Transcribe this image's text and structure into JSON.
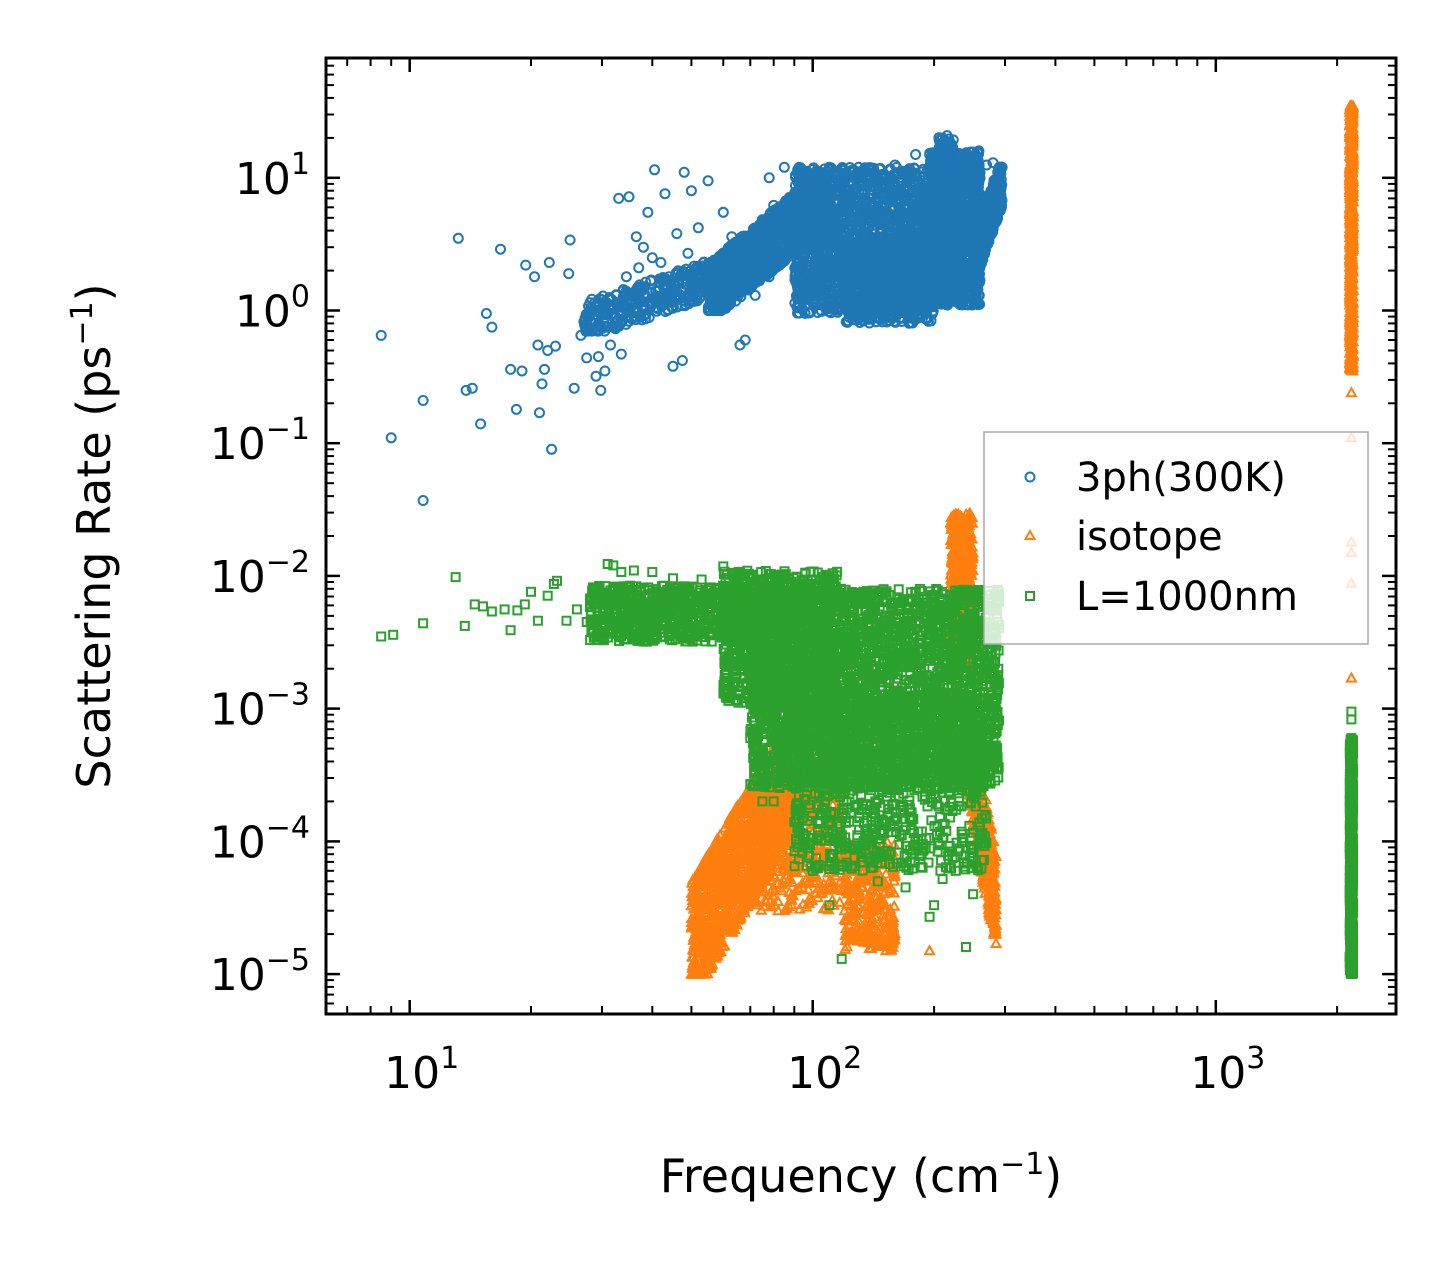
{
  "chart_data": {
    "type": "scatter",
    "xscale": "log",
    "yscale": "log",
    "xlim": [
      6.2,
      2800
    ],
    "ylim": [
      5e-06,
      80
    ],
    "xlabel": {
      "text": "Frequency (cm",
      "sup": "−1",
      "tail": ")"
    },
    "ylabel": {
      "text": "Scattering Rate (ps",
      "sup": "−1",
      "tail": ")"
    },
    "xticks": [
      {
        "value": 10,
        "base": "10",
        "exp": "1"
      },
      {
        "value": 100,
        "base": "10",
        "exp": "2"
      },
      {
        "value": 1000,
        "base": "10",
        "exp": "3"
      }
    ],
    "yticks": [
      {
        "value": 10,
        "base": "10",
        "exp": "1"
      },
      {
        "value": 1,
        "base": "10",
        "exp": "0"
      },
      {
        "value": 0.1,
        "base": "10",
        "exp": "−1"
      },
      {
        "value": 0.01,
        "base": "10",
        "exp": "−2"
      },
      {
        "value": 0.001,
        "base": "10",
        "exp": "−3"
      },
      {
        "value": 0.0001,
        "base": "10",
        "exp": "−4"
      },
      {
        "value": 1e-05,
        "base": "10",
        "exp": "−5"
      }
    ],
    "legend": {
      "position": "center-right"
    },
    "series": [
      {
        "name": "3ph(300K)",
        "marker": "circle",
        "color": "#1f77b4",
        "points": [
          [
            8.5,
            0.65
          ],
          [
            9.0,
            0.11
          ],
          [
            10.8,
            0.21
          ],
          [
            10.8,
            0.037
          ],
          [
            13.2,
            3.5
          ],
          [
            13.8,
            0.25
          ],
          [
            14.3,
            0.26
          ],
          [
            15.0,
            0.14
          ],
          [
            15.5,
            0.95
          ],
          [
            16.0,
            0.75
          ],
          [
            16.8,
            2.9
          ],
          [
            17.8,
            0.36
          ],
          [
            18.4,
            0.18
          ],
          [
            19.0,
            0.35
          ],
          [
            19.4,
            2.2
          ],
          [
            20.4,
            1.8
          ],
          [
            20.8,
            0.55
          ],
          [
            21.0,
            0.17
          ],
          [
            21.3,
            0.28
          ],
          [
            21.6,
            0.36
          ],
          [
            22.0,
            0.5
          ],
          [
            22.2,
            2.3
          ],
          [
            22.5,
            0.09
          ],
          [
            23.0,
            0.54
          ],
          [
            24.8,
            1.9
          ],
          [
            25.0,
            3.4
          ],
          [
            25.6,
            0.26
          ],
          [
            26.6,
            0.65
          ],
          [
            27.5,
            0.44
          ],
          [
            28.3,
            0.7
          ],
          [
            29.0,
            0.32
          ],
          [
            29.4,
            0.45
          ],
          [
            29.8,
            0.25
          ],
          [
            30.0,
            1.05
          ],
          [
            30.5,
            0.35
          ],
          [
            31.5,
            0.55
          ],
          [
            32.3,
            0.74
          ],
          [
            33.0,
            7.0
          ],
          [
            33.5,
            0.47
          ],
          [
            34.5,
            1.8
          ],
          [
            35.0,
            7.2
          ],
          [
            35.8,
            1.2
          ],
          [
            36.5,
            3.6
          ],
          [
            37.0,
            2.1
          ],
          [
            38.0,
            3.0
          ],
          [
            39.0,
            5.5
          ],
          [
            40.0,
            2.5
          ],
          [
            40.5,
            11.5
          ],
          [
            41.3,
            1.4
          ],
          [
            42.0,
            2.3
          ],
          [
            43.0,
            7.6
          ],
          [
            44.0,
            1.8
          ],
          [
            45.0,
            0.38
          ],
          [
            46.0,
            3.8
          ],
          [
            47.5,
            0.42
          ],
          [
            48.0,
            11.0
          ],
          [
            49.0,
            2.7
          ],
          [
            50.0,
            8.0
          ],
          [
            52.0,
            4.2
          ],
          [
            55.0,
            9.5
          ],
          [
            58.0,
            1.6
          ],
          [
            60.0,
            5.5
          ],
          [
            63.0,
            3.6
          ],
          [
            66.0,
            0.55
          ],
          [
            68.0,
            0.6
          ],
          [
            70.0,
            2.8
          ],
          [
            72.0,
            1.3
          ],
          [
            75.0,
            4.6
          ],
          [
            78.0,
            10.0
          ],
          [
            80.0,
            6.2
          ],
          [
            85.0,
            12.0
          ],
          [
            90.0,
            7.5
          ],
          [
            95.0,
            2.5
          ],
          [
            100.0,
            9.4
          ],
          [
            105.0,
            4.2
          ],
          [
            110.0,
            12.0
          ],
          [
            115.0,
            1.4
          ],
          [
            120.0,
            5.0
          ],
          [
            125.0,
            6.2
          ],
          [
            130.0,
            12.0
          ],
          [
            135.0,
            3.0
          ],
          [
            140.0,
            7.0
          ],
          [
            145.0,
            1.2
          ],
          [
            150.0,
            9.8
          ],
          [
            160.0,
            12.5
          ],
          [
            170.0,
            3.3
          ],
          [
            180.0,
            15.0
          ],
          [
            190.0,
            5.5
          ],
          [
            200.0,
            13.0
          ],
          [
            210.0,
            20.0
          ],
          [
            215.0,
            8.0
          ],
          [
            220.0,
            2.2
          ],
          [
            230.0,
            3.0
          ],
          [
            240.0,
            5.0
          ],
          [
            250.0,
            1.6
          ],
          [
            260.0,
            10.0
          ],
          [
            270.0,
            12.5
          ],
          [
            280.0,
            13.0
          ],
          [
            290.0,
            9.5
          ]
        ],
        "cloud": [
          {
            "x": [
              27,
              80
            ],
            "y": [
              0.7,
              3.0
            ],
            "n": 500,
            "trend": 1
          },
          {
            "x": [
              55,
              110
            ],
            "y": [
              1.0,
              10.0
            ],
            "n": 1300,
            "trend": 1
          },
          {
            "x": [
              90,
              200
            ],
            "y": [
              0.95,
              12.0
            ],
            "n": 1700,
            "trend": 0
          },
          {
            "x": [
              120,
              200
            ],
            "y": [
              0.8,
              3.5
            ],
            "n": 600,
            "trend": 0
          },
          {
            "x": [
              195,
              260
            ],
            "y": [
              1.1,
              16.0
            ],
            "n": 1200,
            "trend": 0
          },
          {
            "x": [
              250,
              295
            ],
            "y": [
              1.8,
              12.0
            ],
            "n": 400,
            "trend": 1
          },
          {
            "x": [
              205,
              225
            ],
            "y": [
              5.0,
              21.0
            ],
            "n": 150,
            "trend": 0
          }
        ]
      },
      {
        "name": "isotope",
        "marker": "triangle",
        "color": "#ff7f0e",
        "points": [
          [
            2170,
            0.24
          ],
          [
            2170,
            0.11
          ],
          [
            2170,
            0.018
          ],
          [
            2170,
            0.015
          ],
          [
            2170,
            0.0088
          ],
          [
            2170,
            0.0017
          ],
          [
            285,
            1.7e-05
          ],
          [
            280,
            2.6e-05
          ],
          [
            275,
            3.2e-05
          ],
          [
            195,
            1.5e-05
          ],
          [
            152,
            1.5e-05
          ],
          [
            145,
            1.8e-05
          ],
          [
            130,
            2.5e-05
          ],
          [
            120,
            3e-05
          ],
          [
            110,
            5e-05
          ]
        ],
        "cloud": [
          {
            "x": [
              50,
              100
            ],
            "y": [
              1e-05,
              0.001
            ],
            "n": 1600,
            "trend": 1,
            "xcurve": 1
          },
          {
            "x": [
              70,
              120
            ],
            "y": [
              3e-05,
              0.0004
            ],
            "n": 400,
            "trend": 0
          },
          {
            "x": [
              120,
              160
            ],
            "y": [
              1.5e-05,
              0.0001
            ],
            "n": 300,
            "trend": 0
          },
          {
            "x": [
              220,
              250
            ],
            "y": [
              0.002,
              0.03
            ],
            "n": 550,
            "trend": 0
          },
          {
            "x": [
              240,
              285
            ],
            "y": [
              2e-05,
              0.001
            ],
            "n": 380,
            "trend": -1
          },
          {
            "x": [
              2150,
              2190
            ],
            "y": [
              0.35,
              35.0
            ],
            "n": 700,
            "trend": 0
          }
        ]
      },
      {
        "name": "L=1000nm",
        "marker": "square",
        "color": "#2ca02c",
        "points": [
          [
            8.5,
            0.0035
          ],
          [
            9.1,
            0.0036
          ],
          [
            10.8,
            0.0044
          ],
          [
            13.0,
            0.0098
          ],
          [
            13.7,
            0.0042
          ],
          [
            14.5,
            0.0061
          ],
          [
            15.2,
            0.0059
          ],
          [
            16.0,
            0.0054
          ],
          [
            17.2,
            0.0056
          ],
          [
            17.8,
            0.0039
          ],
          [
            18.5,
            0.0055
          ],
          [
            19.3,
            0.0061
          ],
          [
            20.0,
            0.0076
          ],
          [
            20.8,
            0.0046
          ],
          [
            22.0,
            0.0071
          ],
          [
            22.8,
            0.0087
          ],
          [
            23.2,
            0.0092
          ],
          [
            24.5,
            0.0046
          ],
          [
            26.0,
            0.0056
          ],
          [
            27.5,
            0.0045
          ],
          [
            28.5,
            0.0082
          ],
          [
            30.0,
            0.0062
          ],
          [
            31.0,
            0.0123
          ],
          [
            32.0,
            0.012
          ],
          [
            33.5,
            0.0107
          ],
          [
            36.0,
            0.011
          ],
          [
            40.0,
            0.0107
          ],
          [
            45.0,
            0.0096
          ],
          [
            53.0,
            0.0094
          ],
          [
            60.0,
            0.0118
          ],
          [
            66.0,
            0.0106
          ],
          [
            70.0,
            0.0006
          ],
          [
            72.0,
            0.0005
          ],
          [
            75.0,
            0.0002
          ],
          [
            80.0,
            0.0002
          ],
          [
            90.0,
            0.00014
          ],
          [
            95.0,
            0.00011
          ],
          [
            100.0,
            6e-05
          ],
          [
            110.0,
            3.3e-05
          ],
          [
            118.0,
            1.3e-05
          ],
          [
            130.0,
            9e-05
          ],
          [
            145.0,
            5e-05
          ],
          [
            170.0,
            4.5e-05
          ],
          [
            195.0,
            2.7e-05
          ],
          [
            200.0,
            3.3e-05
          ],
          [
            210.0,
            5.2e-05
          ],
          [
            240.0,
            1.6e-05
          ],
          [
            250.0,
            4e-05
          ],
          [
            270.0,
            0.00049
          ],
          [
            285.0,
            0.0012
          ],
          [
            290.0,
            0.007
          ],
          [
            2170,
            0.00095
          ],
          [
            2170,
            0.00083
          ],
          [
            2170,
            0.0006
          ],
          [
            2170,
            0.0005
          ]
        ],
        "cloud": [
          {
            "x": [
              28,
              70
            ],
            "y": [
              0.0032,
              0.0085
            ],
            "n": 700,
            "trend": 0
          },
          {
            "x": [
              60,
              115
            ],
            "y": [
              0.0011,
              0.011
            ],
            "n": 900,
            "trend": 0
          },
          {
            "x": [
              70,
              290
            ],
            "y": [
              0.00025,
              0.008
            ],
            "n": 3200,
            "trend": 0
          },
          {
            "x": [
              90,
              270
            ],
            "y": [
              6e-05,
              0.0012
            ],
            "n": 900,
            "trend": 0
          },
          {
            "x": [
              2150,
              2190
            ],
            "y": [
              1e-05,
              0.0006
            ],
            "n": 800,
            "trend": 0
          }
        ]
      }
    ]
  }
}
